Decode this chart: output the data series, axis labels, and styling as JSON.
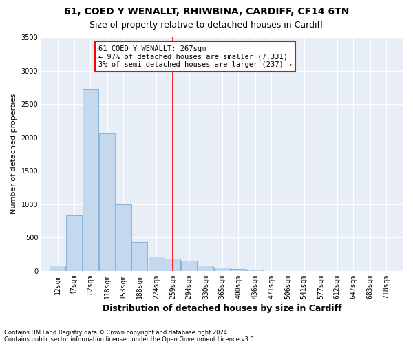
{
  "title_line1": "61, COED Y WENALLT, RHIWBINA, CARDIFF, CF14 6TN",
  "title_line2": "Size of property relative to detached houses in Cardiff",
  "xlabel": "Distribution of detached houses by size in Cardiff",
  "ylabel": "Number of detached properties",
  "bar_color": "#c5d9ee",
  "bar_edge_color": "#7aaed4",
  "background_color": "#e8eef6",
  "vline_x": 259,
  "vline_color": "red",
  "annotation_line1": "61 COED Y WENALLT: 267sqm",
  "annotation_line2": "← 97% of detached houses are smaller (7,331)",
  "annotation_line3": "3% of semi-detached houses are larger (237) →",
  "categories": [
    "12sqm",
    "47sqm",
    "82sqm",
    "118sqm",
    "153sqm",
    "188sqm",
    "224sqm",
    "259sqm",
    "294sqm",
    "330sqm",
    "365sqm",
    "400sqm",
    "436sqm",
    "471sqm",
    "506sqm",
    "541sqm",
    "577sqm",
    "612sqm",
    "647sqm",
    "683sqm",
    "718sqm"
  ],
  "bin_left_edges": [
    12,
    47,
    82,
    118,
    153,
    188,
    224,
    259,
    294,
    330,
    365,
    400,
    436,
    471,
    506,
    541,
    577,
    612,
    647,
    683,
    718
  ],
  "bin_width": 35,
  "values": [
    80,
    830,
    2720,
    2060,
    1000,
    430,
    210,
    185,
    150,
    75,
    50,
    30,
    20,
    0,
    0,
    0,
    0,
    0,
    0,
    0,
    0
  ],
  "ylim": [
    0,
    3500
  ],
  "yticks": [
    0,
    500,
    1000,
    1500,
    2000,
    2500,
    3000,
    3500
  ],
  "footnote_line1": "Contains HM Land Registry data © Crown copyright and database right 2024.",
  "footnote_line2": "Contains public sector information licensed under the Open Government Licence v3.0.",
  "title_fontsize": 10,
  "subtitle_fontsize": 9,
  "axis_label_fontsize": 8,
  "tick_fontsize": 7,
  "annotation_fontsize": 7.5
}
